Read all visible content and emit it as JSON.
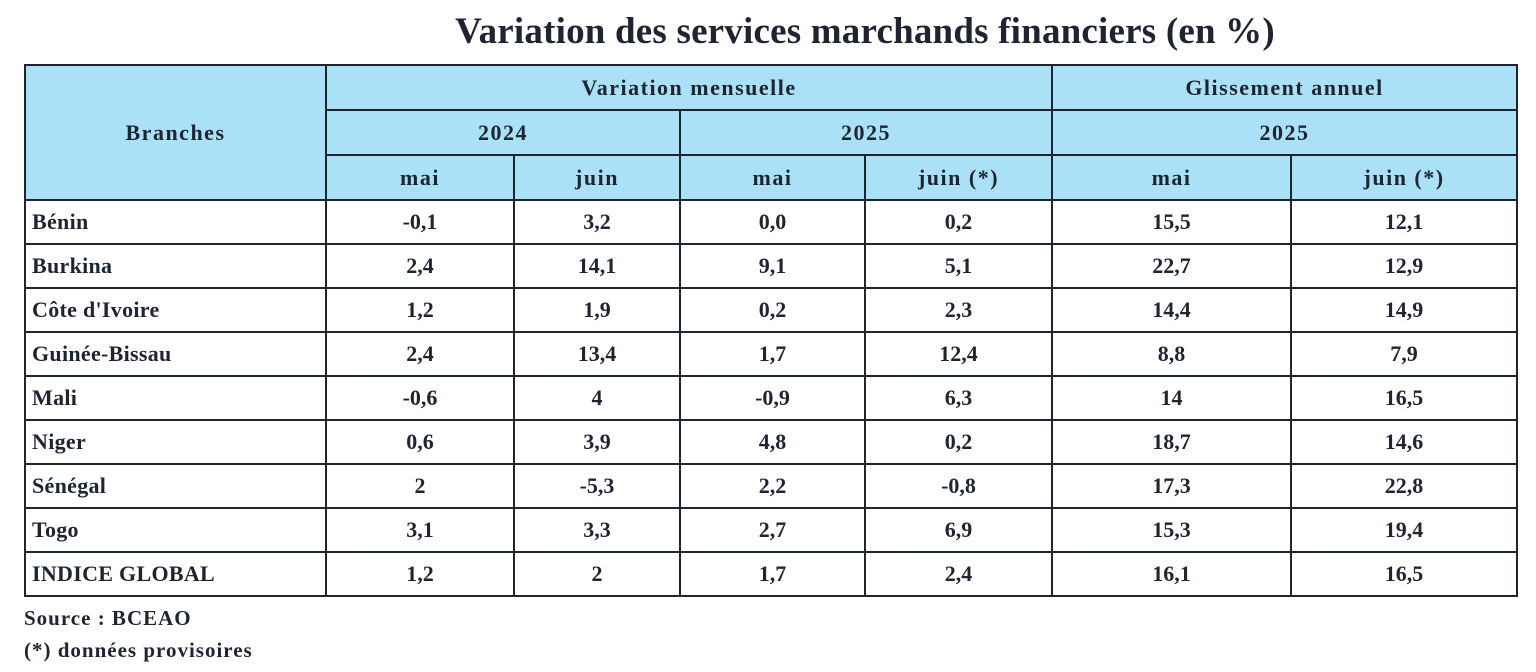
{
  "title": "Variation des services marchands financiers (en %)",
  "header": {
    "branches": "Branches",
    "group1": "Variation mensuelle",
    "group2": "Glissement annuel",
    "years": [
      "2024",
      "2025",
      "2025"
    ],
    "months": [
      "mai",
      "juin",
      "mai",
      "juin (*)",
      "mai",
      "juin (*)"
    ]
  },
  "rows": [
    {
      "name": "Bénin",
      "values": [
        "-0,1",
        "3,2",
        "0,0",
        "0,2",
        "15,5",
        "12,1"
      ]
    },
    {
      "name": "Burkina",
      "values": [
        "2,4",
        "14,1",
        "9,1",
        "5,1",
        "22,7",
        "12,9"
      ]
    },
    {
      "name": "Côte d'Ivoire",
      "values": [
        "1,2",
        "1,9",
        "0,2",
        "2,3",
        "14,4",
        "14,9"
      ]
    },
    {
      "name": "Guinée-Bissau",
      "values": [
        "2,4",
        "13,4",
        "1,7",
        "12,4",
        "8,8",
        "7,9"
      ]
    },
    {
      "name": "Mali",
      "values": [
        "-0,6",
        "4",
        "-0,9",
        "6,3",
        "14",
        "16,5"
      ]
    },
    {
      "name": "Niger",
      "values": [
        "0,6",
        "3,9",
        "4,8",
        "0,2",
        "18,7",
        "14,6"
      ]
    },
    {
      "name": "Sénégal",
      "values": [
        "2",
        "-5,3",
        "2,2",
        "-0,8",
        "17,3",
        "22,8"
      ]
    },
    {
      "name": "Togo",
      "values": [
        "3,1",
        "3,3",
        "2,7",
        "6,9",
        "15,3",
        "19,4"
      ]
    },
    {
      "name": "INDICE GLOBAL",
      "values": [
        "1,2",
        "2",
        "1,7",
        "2,4",
        "16,1",
        "16,5"
      ]
    }
  ],
  "source": "Source : BCEAO",
  "note": "(*) données provisoires"
}
